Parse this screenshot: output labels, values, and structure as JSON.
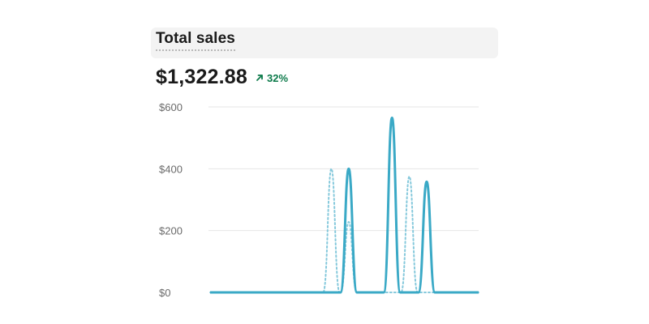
{
  "header": {
    "title": "Total sales"
  },
  "metric": {
    "value": "$1,322.88",
    "change": "32%",
    "trend": "up",
    "trend_color": "#0c7a4a"
  },
  "colors": {
    "primary_series": "#3aa9c6",
    "comparison_series": "#86c9dc",
    "gridline": "#e6e6e6",
    "tick_label": "#6b6b6b"
  },
  "chart_data": {
    "type": "line",
    "title": "Total sales",
    "xlabel": "",
    "ylabel": "",
    "ylim": [
      0,
      600
    ],
    "yticks": [
      {
        "value": 0,
        "label": "$0"
      },
      {
        "value": 200,
        "label": "$200"
      },
      {
        "value": 400,
        "label": "$400"
      },
      {
        "value": 600,
        "label": "$600"
      }
    ],
    "x_points": 32,
    "grid": true,
    "legend": "none",
    "series": [
      {
        "style": "solid",
        "values": [
          0,
          0,
          0,
          0,
          0,
          0,
          0,
          0,
          0,
          0,
          0,
          0,
          0,
          0,
          0,
          0,
          400,
          0,
          0,
          0,
          0,
          565,
          0,
          0,
          0,
          358,
          0,
          0,
          0,
          0,
          0,
          0
        ]
      },
      {
        "style": "dotted",
        "values": [
          0,
          0,
          0,
          0,
          0,
          0,
          0,
          0,
          0,
          0,
          0,
          0,
          0,
          0,
          400,
          0,
          228,
          0,
          0,
          0,
          0,
          0,
          0,
          375,
          0,
          0,
          0,
          0,
          0,
          0,
          0,
          0
        ]
      }
    ]
  }
}
